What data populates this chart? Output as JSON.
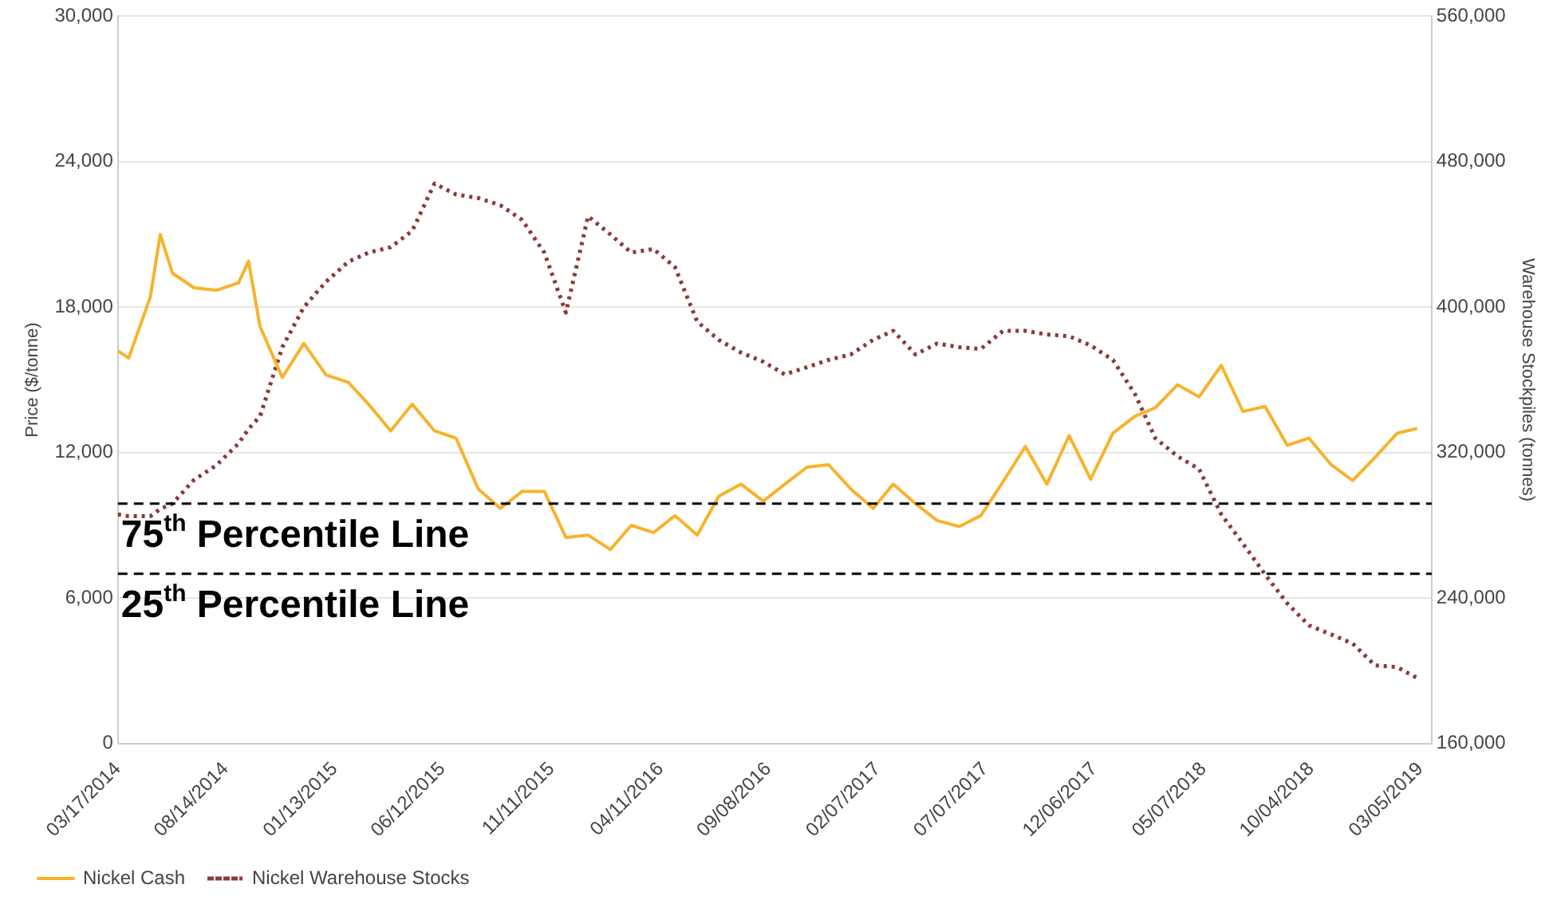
{
  "chart_data": {
    "type": "line",
    "ylabel": "Price ($/tonne)",
    "y2label": "Warehouse Stockpiles (tonnes)",
    "x": [
      "2014-03-17",
      "2014-04",
      "2014-05",
      "2014-05-15",
      "2014-06",
      "2014-07",
      "2014-08",
      "2014-09",
      "2014-09-15",
      "2014-10",
      "2014-11",
      "2014-12",
      "2015-01",
      "2015-02",
      "2015-03",
      "2015-04",
      "2015-05",
      "2015-06",
      "2015-07",
      "2015-08",
      "2015-09",
      "2015-10",
      "2015-11",
      "2015-12",
      "2016-01",
      "2016-02",
      "2016-03",
      "2016-04",
      "2016-05",
      "2016-06",
      "2016-07",
      "2016-08",
      "2016-09",
      "2016-10",
      "2016-11",
      "2016-12",
      "2017-01",
      "2017-02",
      "2017-03",
      "2017-04",
      "2017-05",
      "2017-06",
      "2017-07",
      "2017-08",
      "2017-09",
      "2017-10",
      "2017-11",
      "2017-12",
      "2018-01",
      "2018-02",
      "2018-03",
      "2018-04",
      "2018-05",
      "2018-06",
      "2018-07",
      "2018-08",
      "2018-09",
      "2018-10",
      "2018-11",
      "2018-12",
      "2019-01",
      "2019-02",
      "2019-03"
    ],
    "series": [
      {
        "name": "Nickel Cash",
        "color": "#f7b32b",
        "line_style": "solid",
        "values": [
          16200,
          15900,
          18400,
          21000,
          19400,
          18800,
          18700,
          19000,
          19900,
          17200,
          15100,
          16500,
          15200,
          14900,
          14000,
          12900,
          14000,
          12900,
          12600,
          10500,
          9700,
          10400,
          10400,
          8500,
          8600,
          8000,
          9000,
          8700,
          9400,
          8600,
          10200,
          10700,
          10000,
          10700,
          11400,
          11500,
          10500,
          9700,
          10700,
          9900,
          9200,
          8950,
          9400,
          10800,
          12250,
          10700,
          12700,
          10900,
          12800,
          13500,
          13850,
          14800,
          14300,
          15600,
          13700,
          13900,
          12300,
          12600,
          11500,
          10850,
          11800,
          12800,
          13000
        ]
      },
      {
        "name": "Nickel Warehouse Stocks",
        "color": "#8b3a3a",
        "line_style": "dotted",
        "axis": "y2",
        "values": [
          286000,
          285000,
          285000,
          289000,
          292000,
          305000,
          313000,
          325000,
          333000,
          340000,
          378000,
          400000,
          414000,
          425000,
          430000,
          433000,
          442000,
          468000,
          462000,
          460000,
          456000,
          448000,
          430000,
          397000,
          450000,
          440000,
          430000,
          432000,
          422000,
          392000,
          382000,
          375000,
          370000,
          363000,
          367000,
          371000,
          374000,
          382000,
          387000,
          374000,
          380000,
          378000,
          377000,
          387000,
          387000,
          385000,
          384000,
          379000,
          371000,
          352000,
          328000,
          318000,
          311000,
          286000,
          270000,
          253000,
          237000,
          225000,
          220000,
          215000,
          203000,
          202000,
          196000
        ]
      }
    ],
    "xlim": [
      "2014-03-17",
      "2019-03-21"
    ],
    "xticks": [
      {
        "value": "2014-03-17",
        "label": "03/17/2014"
      },
      {
        "value": "2014-08-14",
        "label": "08/14/2014"
      },
      {
        "value": "2015-01-13",
        "label": "01/13/2015"
      },
      {
        "value": "2015-06-12",
        "label": "06/12/2015"
      },
      {
        "value": "2015-11-11",
        "label": "11/11/2015"
      },
      {
        "value": "2016-04-11",
        "label": "04/11/2016"
      },
      {
        "value": "2016-09-08",
        "label": "09/08/2016"
      },
      {
        "value": "2017-02-07",
        "label": "02/07/2017"
      },
      {
        "value": "2017-07-07",
        "label": "07/07/2017"
      },
      {
        "value": "2017-12-06",
        "label": "12/06/2017"
      },
      {
        "value": "2018-05-07",
        "label": "05/07/2018"
      },
      {
        "value": "2018-10-04",
        "label": "10/04/2018"
      },
      {
        "value": "2019-03-05",
        "label": "03/05/2019"
      }
    ],
    "ylim": [
      0,
      30000
    ],
    "yticks": [
      {
        "value": 0,
        "label": "0"
      },
      {
        "value": 6000,
        "label": "6,000"
      },
      {
        "value": 12000,
        "label": "12,000"
      },
      {
        "value": 18000,
        "label": "18,000"
      },
      {
        "value": 24000,
        "label": "24,000"
      },
      {
        "value": 30000,
        "label": "30,000"
      }
    ],
    "y2lim": [
      160000,
      560000
    ],
    "y2ticks": [
      {
        "value": 160000,
        "label": "160,000"
      },
      {
        "value": 240000,
        "label": "240,000"
      },
      {
        "value": 320000,
        "label": "320,000"
      },
      {
        "value": 400000,
        "label": "400,000"
      },
      {
        "value": 480000,
        "label": "480,000"
      },
      {
        "value": 560000,
        "label": "560,000"
      }
    ],
    "ref_lines": [
      {
        "axis": "y",
        "value": 9900,
        "label": "75$^{th}$ Percentile Line",
        "color": "#000000",
        "line_style": "dashed"
      },
      {
        "axis": "y",
        "value": 7000,
        "label": "25$^{th}$ Percentile Line",
        "color": "#000000",
        "line_style": "dashed"
      }
    ],
    "grid": "y",
    "legend": "bottom left",
    "marker": "none"
  }
}
